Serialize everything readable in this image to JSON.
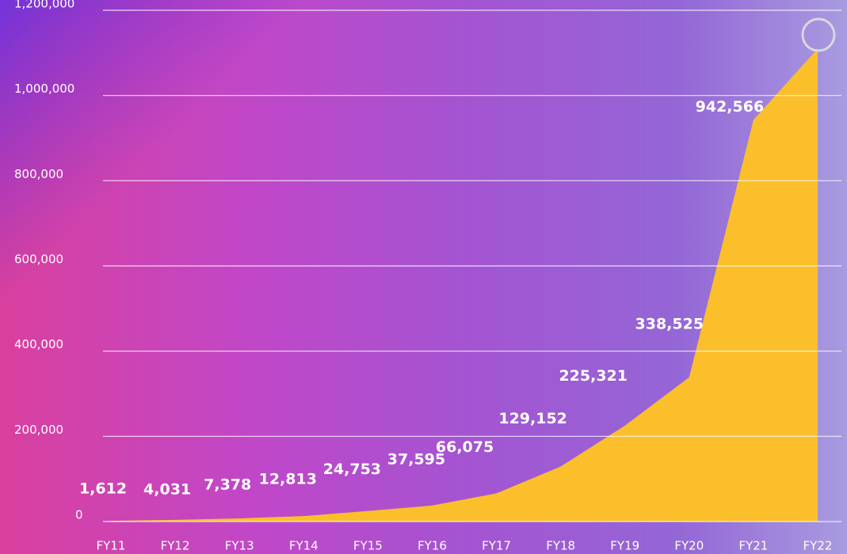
{
  "chart_data": {
    "type": "area",
    "categories": [
      "FY11",
      "FY12",
      "FY13",
      "FY14",
      "FY15",
      "FY16",
      "FY17",
      "FY18",
      "FY19",
      "FY20",
      "FY21",
      "FY22"
    ],
    "values": [
      1612,
      4031,
      7378,
      12813,
      24753,
      37595,
      66075,
      129152,
      225321,
      338525,
      942566,
      1110000
    ],
    "value_labels": [
      "1,612",
      "4,031",
      "7,378",
      "12,813",
      "24,753",
      "37,595",
      "66,075",
      "129,152",
      "225,321",
      "338,525",
      "942,566",
      null
    ],
    "color": "#fbbf2c",
    "ylim": [
      0,
      1200000
    ],
    "yticks": [
      0,
      {
        "value": 200000,
        "label": "200,000"
      },
      {
        "value": 400000,
        "label": "400,000"
      },
      {
        "value": 600000,
        "label": "600,000"
      },
      {
        "value": 800000,
        "label": "800,000"
      },
      {
        "value": 1000000,
        "label": "1,000,000"
      },
      {
        "value": 1200000,
        "label": "1,200,000"
      }
    ],
    "grid": true
  }
}
